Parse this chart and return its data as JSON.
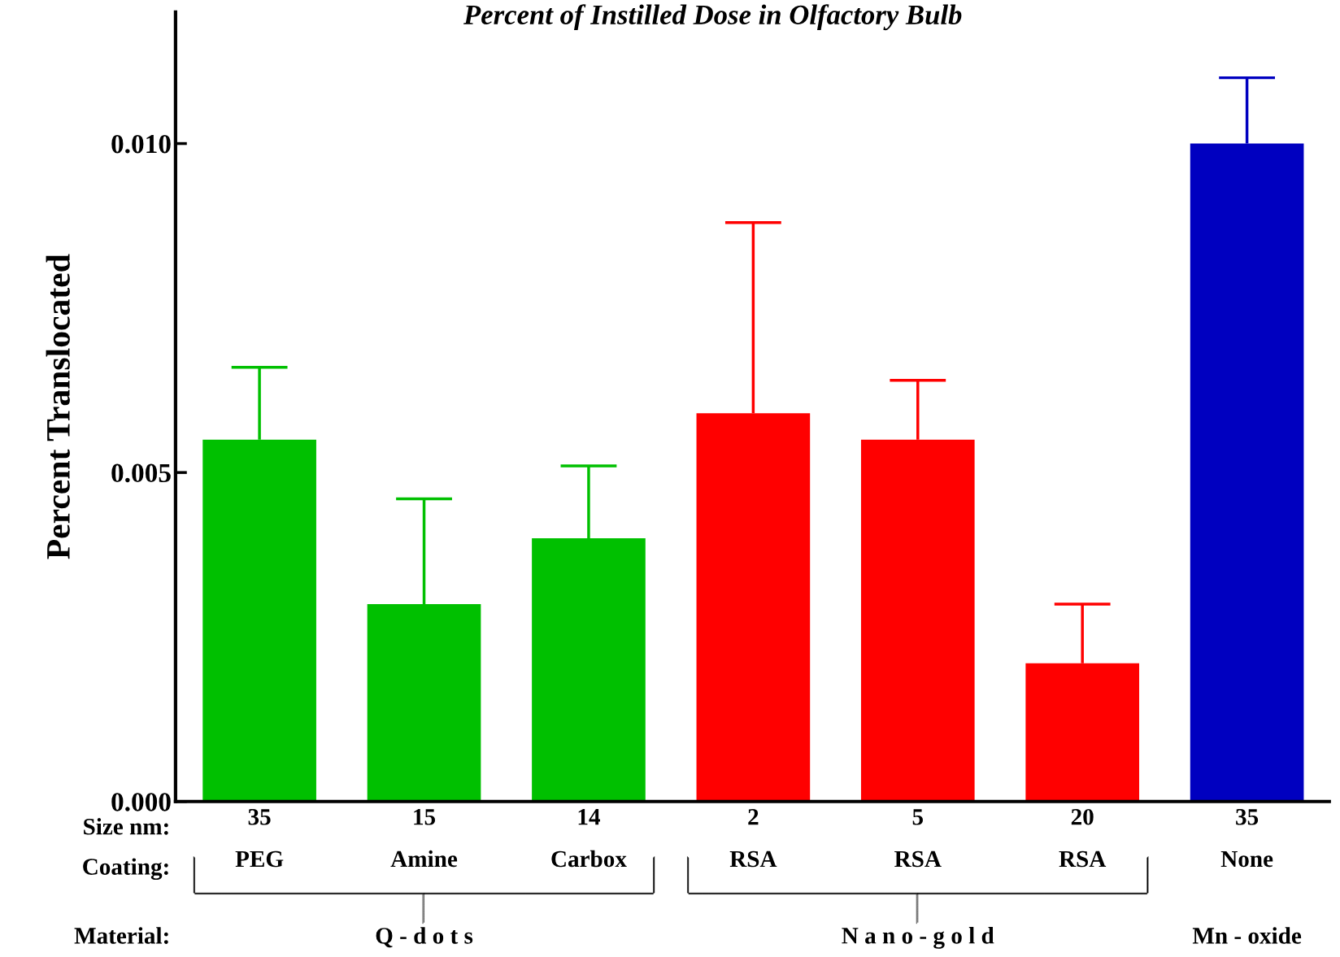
{
  "chart_data": {
    "type": "bar",
    "title": "Percent of Instilled Dose in Olfactory Bulb",
    "ylabel": "Percent Translocated",
    "categories": [
      "35\nPEG",
      "15\nAmine",
      "14\nCarbox",
      "2\nRSA",
      "5\nRSA",
      "20\nRSA",
      "35\nNone"
    ],
    "values": [
      0.0055,
      0.003,
      0.004,
      0.0059,
      0.0055,
      0.0021,
      0.01
    ],
    "errors": [
      [
        0.0055,
        0.0066
      ],
      [
        0.003,
        0.0046
      ],
      [
        0.004,
        0.0051
      ],
      [
        0.0059,
        0.0088
      ],
      [
        0.0055,
        0.0064
      ],
      [
        0.0021,
        0.003
      ],
      [
        0.01,
        0.011
      ]
    ],
    "colors": [
      "#00c000",
      "#00c000",
      "#00c000",
      "#ff0000",
      "#ff0000",
      "#ff0000",
      "#0000c0"
    ],
    "ylim": [
      0,
      0.012
    ],
    "yticks": [
      {
        "value": 0,
        "label": "0.000"
      },
      {
        "value": 0.005,
        "label": "0.005"
      },
      {
        "value": 0.01,
        "label": "0.010"
      }
    ],
    "grid": false,
    "annotations": [
      "Size nm:",
      "Coating:",
      "Material:",
      "Q - d o t s",
      "N a n o - g o l d",
      "Mn - oxide"
    ]
  }
}
